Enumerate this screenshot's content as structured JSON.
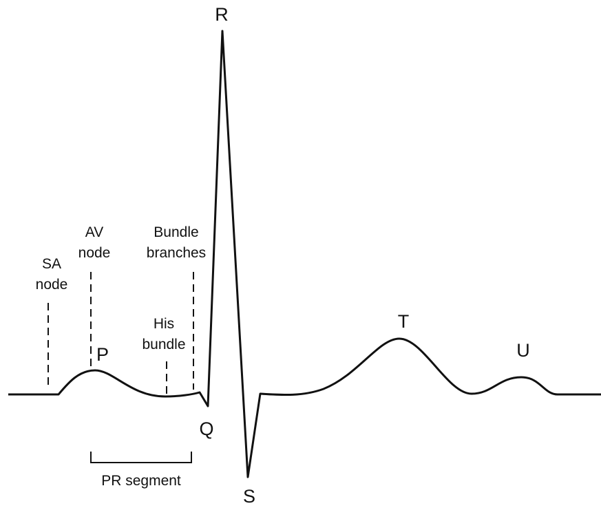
{
  "diagram": {
    "waves": {
      "P": "P",
      "Q": "Q",
      "R": "R",
      "S": "S",
      "T": "T",
      "U": "U"
    },
    "markers": [
      {
        "lines": [
          "SA",
          "node"
        ]
      },
      {
        "lines": [
          "AV",
          "node"
        ]
      },
      {
        "lines": [
          "His",
          "bundle"
        ]
      },
      {
        "lines": [
          "Bundle",
          "branches"
        ]
      }
    ],
    "segment": "PR segment"
  }
}
